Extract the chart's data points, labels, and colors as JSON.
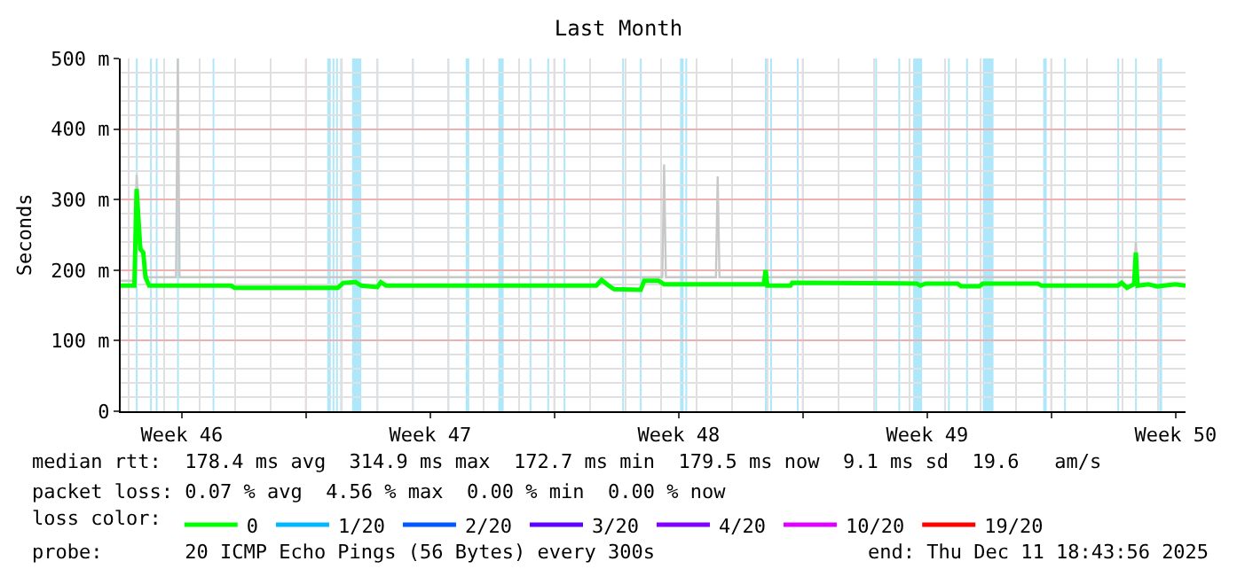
{
  "chart_data": {
    "type": "line",
    "title": "Last Month",
    "ylabel": "Seconds",
    "xlim": [
      "2025-11-11T18:44",
      "2025-12-11T18:44"
    ],
    "xticks": [
      {
        "value": "2025-11-13T12:00",
        "label": "Week 46"
      },
      {
        "value": "2025-11-20T12:00",
        "label": "Week 47"
      },
      {
        "value": "2025-11-27T12:00",
        "label": "Week 48"
      },
      {
        "value": "2025-12-04T12:00",
        "label": "Week 49"
      },
      {
        "value": "2025-12-11T12:00",
        "label": "Week 50"
      },
      {
        "value": "2025-11-17",
        "label": null
      },
      {
        "value": "2025-11-24",
        "label": null
      },
      {
        "value": "2025-12-01",
        "label": null
      },
      {
        "value": "2025-12-08",
        "label": null
      }
    ],
    "ylim": [
      0,
      500
    ],
    "yticks": [
      0,
      {
        "value": 100,
        "label": "100 m"
      },
      {
        "value": 200,
        "label": "200 m"
      },
      {
        "value": 300,
        "label": "300 m"
      },
      {
        "value": 400,
        "label": "400 m"
      },
      {
        "value": 500,
        "label": "500 m"
      }
    ],
    "grid": true,
    "legend": "bottom",
    "legend_title": "loss color:",
    "series": [
      {
        "color": "#c8c8c8",
        "x": [
          "2025-11-11T18:44",
          "2025-11-12T04:00",
          "2025-11-12T05:30",
          "2025-11-12T08:00",
          "2025-11-12T12:40",
          "2025-11-13T08:10",
          "2025-11-13T09:22",
          "2025-11-13T10:34",
          "2025-11-27T00:58",
          "2025-11-27T02:10",
          "2025-11-27T03:22",
          "2025-11-28T13:12",
          "2025-11-28T14:24",
          "2025-11-28T15:36",
          "2025-12-10T07:55",
          "2025-12-10T09:07",
          "2025-12-10T10:19",
          "2025-12-11T18:44"
        ],
        "values": [
          185,
          185,
          335,
          240,
          190,
          190,
          500,
          190,
          190,
          350,
          190,
          190,
          333,
          190,
          190,
          240,
          190,
          190
        ]
      },
      {
        "name": "0",
        "color": "#00ff00",
        "x": [
          "2025-11-11T18:44",
          "2025-11-12T04:00",
          "2025-11-12T05:30",
          "2025-11-12T08:00",
          "2025-11-12T10:00",
          "2025-11-12T11:30",
          "2025-11-12T14:00",
          "2025-11-14T21:22",
          "2025-11-14T23:46",
          "2025-11-17T21:36",
          "2025-11-18T01:12",
          "2025-11-18T09:36",
          "2025-11-18T13:26",
          "2025-11-19T00:14",
          "2025-11-19T02:38",
          "2025-11-19T06:14",
          "2025-11-25T04:19",
          "2025-11-25T07:55",
          "2025-11-25T12:43",
          "2025-11-25T16:19",
          "2025-11-26T10:19",
          "2025-11-26T12:43",
          "2025-11-26T22:19",
          "2025-11-27T02:10",
          "2025-11-29T21:36",
          "2025-11-29T22:48",
          "2025-11-30T00:00",
          "2025-11-30T15:36",
          "2025-11-30T16:48",
          "2025-12-04T05:02",
          "2025-12-04T07:26",
          "2025-12-04T11:02",
          "2025-12-05T08:38",
          "2025-12-05T11:02",
          "2025-12-05T23:17",
          "2025-12-06T01:41",
          "2025-12-07T14:53",
          "2025-12-07T17:17",
          "2025-12-09T21:07",
          "2025-12-09T23:31",
          "2025-12-10T03:07",
          "2025-12-10T07:55",
          "2025-12-10T09:07",
          "2025-12-10T10:19",
          "2025-12-10T17:31",
          "2025-12-10T23:46",
          "2025-12-11T11:46",
          "2025-12-11T18:44"
        ],
        "values": [
          178,
          178,
          315,
          230,
          225,
          190,
          178,
          178,
          175,
          175,
          182,
          183,
          178,
          176,
          183,
          178,
          178,
          186,
          178,
          173,
          172,
          185,
          185,
          180,
          180,
          200,
          178,
          178,
          182,
          181,
          178,
          181,
          181,
          177,
          177,
          181,
          181,
          178,
          178,
          182,
          175,
          180,
          225,
          178,
          180,
          177,
          180,
          178
        ]
      },
      {
        "name": "1/20",
        "color": "#00b8ff",
        "values": [
          null
        ]
      },
      {
        "name": "2/20",
        "color": "#0059ff",
        "values": [
          null
        ]
      },
      {
        "name": "3/20",
        "color": "#5e00ff",
        "values": [
          null
        ]
      },
      {
        "name": "4/20",
        "color": "#7e00ff",
        "values": [
          null
        ]
      },
      {
        "name": "10/20",
        "color": "#dd00ff",
        "values": [
          null
        ]
      },
      {
        "name": "19/20",
        "color": "#ff0000",
        "values": [
          null
        ]
      }
    ],
    "bands": [
      {
        "axis": "x",
        "from": "2025-11-12T05:02",
        "to": "2025-11-12T06:14",
        "color": "#aee6fa"
      },
      {
        "axis": "x",
        "from": "2025-11-12T14:38",
        "to": "2025-11-12T15:50",
        "color": "#aee6fa"
      },
      {
        "axis": "x",
        "from": "2025-11-12T18:29",
        "to": "2025-11-12T19:41",
        "color": "#aee6fa"
      },
      {
        "axis": "x",
        "from": "2025-11-13T08:53",
        "to": "2025-11-13T10:05",
        "color": "#aee6fa"
      },
      {
        "axis": "x",
        "from": "2025-11-14T08:53",
        "to": "2025-11-14T10:05",
        "color": "#aee6fa"
      },
      {
        "axis": "x",
        "from": "2025-11-17T14:24",
        "to": "2025-11-17T16:48",
        "color": "#aee6fa"
      },
      {
        "axis": "x",
        "from": "2025-11-17T18:00",
        "to": "2025-11-17T19:12",
        "color": "#aee6fa"
      },
      {
        "axis": "x",
        "from": "2025-11-17T20:24",
        "to": "2025-11-17T21:36",
        "color": "#aee6fa"
      },
      {
        "axis": "x",
        "from": "2025-11-17T23:10",
        "to": "2025-11-18T00:50",
        "color": "#aee6fa"
      },
      {
        "axis": "x",
        "from": "2025-11-18T07:12",
        "to": "2025-11-18T13:26",
        "color": "#aee6fa"
      },
      {
        "axis": "x",
        "from": "2025-11-18T23:46",
        "to": "2025-11-19T00:58",
        "color": "#aee6fa"
      },
      {
        "axis": "x",
        "from": "2025-11-19T23:46",
        "to": "2025-11-20T00:58",
        "color": "#aee6fa"
      },
      {
        "axis": "x",
        "from": "2025-11-20T23:46",
        "to": "2025-11-21T00:58",
        "color": "#aee6fa"
      },
      {
        "axis": "x",
        "from": "2025-11-21T12:00",
        "to": "2025-11-21T14:24",
        "color": "#aee6fa"
      },
      {
        "axis": "x",
        "from": "2025-11-22T10:05",
        "to": "2025-11-22T13:41",
        "color": "#aee6fa"
      },
      {
        "axis": "x",
        "from": "2025-11-23T07:12",
        "to": "2025-11-23T08:24",
        "color": "#aee6fa"
      },
      {
        "axis": "x",
        "from": "2025-11-23T19:12",
        "to": "2025-11-23T20:24",
        "color": "#aee6fa"
      },
      {
        "axis": "x",
        "from": "2025-11-24T06:14",
        "to": "2025-11-24T07:26",
        "color": "#aee6fa"
      },
      {
        "axis": "x",
        "from": "2025-11-25T21:50",
        "to": "2025-11-25T23:02",
        "color": "#aee6fa"
      },
      {
        "axis": "x",
        "from": "2025-11-26T09:50",
        "to": "2025-11-26T11:02",
        "color": "#aee6fa"
      },
      {
        "axis": "x",
        "from": "2025-11-27T12:58",
        "to": "2025-11-27T15:22",
        "color": "#aee6fa"
      },
      {
        "axis": "x",
        "from": "2025-11-27T16:34",
        "to": "2025-11-27T17:46",
        "color": "#aee6fa"
      },
      {
        "axis": "x",
        "from": "2025-11-29T22:19",
        "to": "2025-11-29T23:31",
        "color": "#aee6fa"
      },
      {
        "axis": "x",
        "from": "2025-11-30T01:55",
        "to": "2025-11-30T03:07",
        "color": "#aee6fa"
      },
      {
        "axis": "x",
        "from": "2025-11-30T19:55",
        "to": "2025-11-30T21:07",
        "color": "#aee6fa"
      },
      {
        "axis": "x",
        "from": "2025-12-03T00:58",
        "to": "2025-12-03T02:10",
        "color": "#aee6fa"
      },
      {
        "axis": "x",
        "from": "2025-12-03T16:34",
        "to": "2025-12-03T17:46",
        "color": "#aee6fa"
      },
      {
        "axis": "x",
        "from": "2025-12-04T02:38",
        "to": "2025-12-04T08:38",
        "color": "#aee6fa"
      },
      {
        "axis": "x",
        "from": "2025-12-05T02:10",
        "to": "2025-12-05T03:22",
        "color": "#aee6fa"
      },
      {
        "axis": "x",
        "from": "2025-12-05T14:24",
        "to": "2025-12-05T15:36",
        "color": "#aee6fa"
      },
      {
        "axis": "x",
        "from": "2025-12-06T01:41",
        "to": "2025-12-06T08:53",
        "color": "#aee6fa"
      },
      {
        "axis": "x",
        "from": "2025-12-07T18:29",
        "to": "2025-12-07T20:53",
        "color": "#aee6fa"
      },
      {
        "axis": "x",
        "from": "2025-12-08T08:38",
        "to": "2025-12-08T09:50",
        "color": "#aee6fa"
      },
      {
        "axis": "x",
        "from": "2025-12-09T20:38",
        "to": "2025-12-09T21:50",
        "color": "#aee6fa"
      },
      {
        "axis": "x",
        "from": "2025-12-10T08:38",
        "to": "2025-12-10T09:50",
        "color": "#aee6fa"
      },
      {
        "axis": "x",
        "from": "2025-12-11T00:58",
        "to": "2025-12-11T02:53",
        "color": "#aee6fa"
      }
    ],
    "annotations": [
      "median rtt:  178.4 ms avg  314.9 ms max  172.7 ms min  179.5 ms now  9.1 ms sd  19.6   am/s",
      "packet loss: 0.07 % avg  4.56 % max  0.00 % min  0.00 % now",
      "probe:       20 ICMP Echo Pings (56 Bytes) every 300s",
      "end: Thu Dec 11 18:43:56 2025"
    ]
  }
}
